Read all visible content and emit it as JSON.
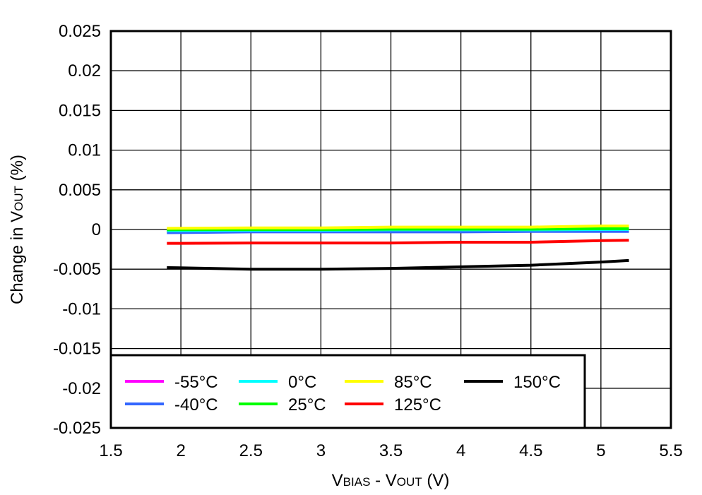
{
  "chart_data": {
    "type": "line",
    "xlabel": {
      "main": "V",
      "sub1": "BIAS",
      "mid": " - V",
      "sub2": "OUT",
      "unit": " (V)"
    },
    "ylabel": {
      "main": "Change in V",
      "sub": "OUT",
      "unit": " (%)"
    },
    "xlim": [
      1.5,
      5.5
    ],
    "ylim": [
      -0.025,
      0.025
    ],
    "xticks": [
      "1.5",
      "2",
      "2.5",
      "3",
      "3.5",
      "4",
      "4.5",
      "5",
      "5.5"
    ],
    "yticks": [
      "0.025",
      "0.02",
      "0.015",
      "0.01",
      "0.005",
      "0",
      "-0.005",
      "-0.01",
      "-0.015",
      "-0.02",
      "-0.025"
    ],
    "grid": true,
    "legend_position": "bottom-left",
    "x": [
      1.9,
      2.5,
      3.0,
      3.5,
      4.0,
      4.5,
      5.0,
      5.2
    ],
    "series": [
      {
        "name": "-55°C",
        "color": "#ff00ff",
        "values": [
          -0.0002,
          -0.0002,
          -0.0002,
          -0.0001,
          -0.0001,
          -0.0001,
          -5e-05,
          -5e-05
        ]
      },
      {
        "name": "-40°C",
        "color": "#3366ff",
        "values": [
          -0.0004,
          -0.0003,
          -0.0003,
          -0.0003,
          -0.0003,
          -0.00025,
          -0.00025,
          -0.00024
        ]
      },
      {
        "name": "0°C",
        "color": "#00ffff",
        "values": [
          -0.00015,
          -0.0001,
          -0.0001,
          -5e-05,
          -5e-05,
          -5e-05,
          0,
          0
        ]
      },
      {
        "name": "25°C",
        "color": "#00ff00",
        "values": [
          -3e-05,
          0,
          0,
          5e-05,
          5e-05,
          5e-05,
          0.0001,
          0.0001
        ]
      },
      {
        "name": "85°C",
        "color": "#ffff00",
        "values": [
          0.00015,
          0.0002,
          0.0002,
          0.0003,
          0.0003,
          0.0003,
          0.00045,
          0.00045
        ]
      },
      {
        "name": "125°C",
        "color": "#ff0000",
        "values": [
          -0.00175,
          -0.0017,
          -0.0017,
          -0.0017,
          -0.0016,
          -0.0016,
          -0.0014,
          -0.00136
        ]
      },
      {
        "name": "150°C",
        "color": "#000000",
        "values": [
          -0.0048,
          -0.005,
          -0.005,
          -0.0049,
          -0.0047,
          -0.0045,
          -0.0041,
          -0.0039
        ]
      }
    ],
    "legend_order": [
      0,
      2,
      4,
      6,
      1,
      3,
      5
    ]
  }
}
